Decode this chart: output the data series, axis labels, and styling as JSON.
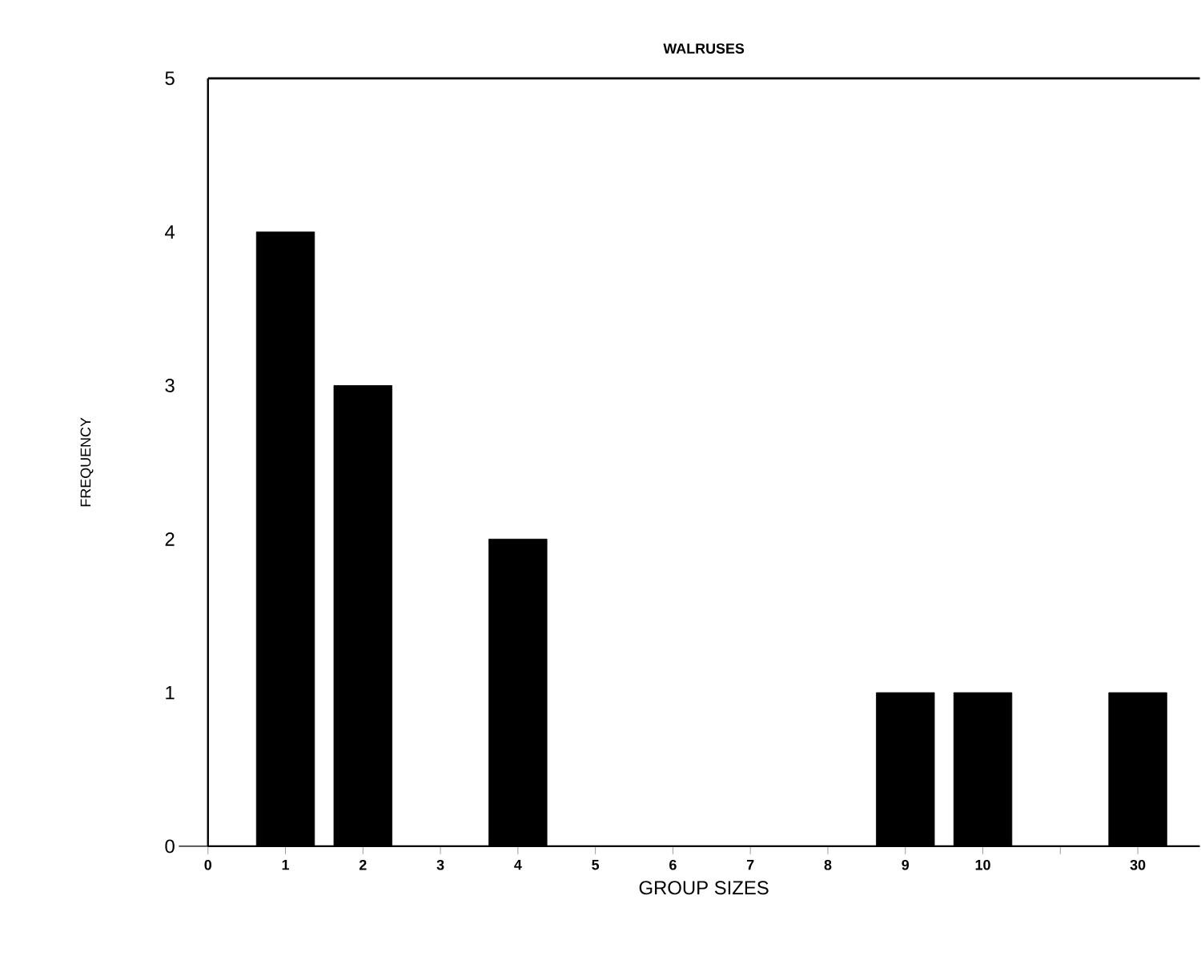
{
  "chart_data": {
    "type": "bar",
    "title": "WALRUSES",
    "xlabel": "GROUP SIZES",
    "ylabel": "FREQUENCY",
    "categories": [
      "0",
      "1",
      "2",
      "3",
      "4",
      "5",
      "6",
      "7",
      "8",
      "9",
      "10",
      null,
      "30"
    ],
    "values": [
      0,
      4,
      3,
      0,
      2,
      0,
      0,
      0,
      0,
      1,
      1,
      0,
      1
    ],
    "color": "#000000",
    "ylim": [
      0,
      5
    ],
    "yticks": [
      0,
      1,
      2,
      3,
      4,
      5
    ],
    "grid": false
  }
}
